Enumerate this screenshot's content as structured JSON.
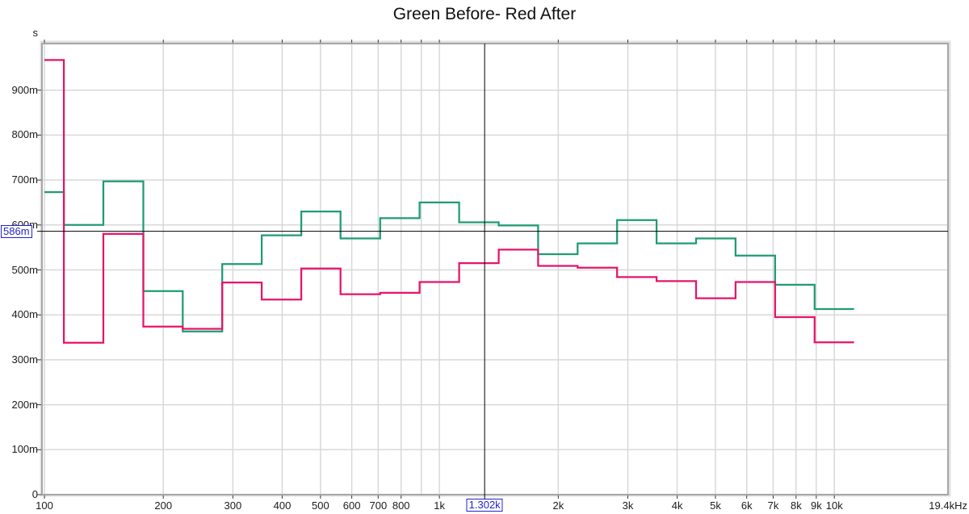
{
  "chart_data": {
    "type": "line",
    "subtype": "step-third-octave-bands",
    "title": "Green Before- Red After",
    "y_unit": "s",
    "x_axis": {
      "scale": "log",
      "min_hz": 100,
      "max_hz": 19400,
      "tick_labels": [
        {
          "f": 100,
          "label": "100"
        },
        {
          "f": 200,
          "label": "200"
        },
        {
          "f": 300,
          "label": "300"
        },
        {
          "f": 400,
          "label": "400"
        },
        {
          "f": 500,
          "label": "500"
        },
        {
          "f": 600,
          "label": "600"
        },
        {
          "f": 700,
          "label": "700"
        },
        {
          "f": 800,
          "label": "800"
        },
        {
          "f": 1000,
          "label": "1k"
        },
        {
          "f": 2000,
          "label": "2k"
        },
        {
          "f": 3000,
          "label": "3k"
        },
        {
          "f": 4000,
          "label": "4k"
        },
        {
          "f": 5000,
          "label": "5k"
        },
        {
          "f": 6000,
          "label": "6k"
        },
        {
          "f": 7000,
          "label": "7k"
        },
        {
          "f": 8000,
          "label": "8k"
        },
        {
          "f": 9000,
          "label": "9k"
        },
        {
          "f": 10000,
          "label": "10k"
        },
        {
          "f": 19400,
          "label": "19.4kHz"
        }
      ],
      "gridline_freqs": [
        100,
        200,
        300,
        400,
        500,
        600,
        700,
        800,
        900,
        1000,
        2000,
        3000,
        4000,
        5000,
        6000,
        7000,
        8000,
        9000,
        10000
      ]
    },
    "y_axis": {
      "min": 0,
      "max": 1000,
      "tick_labels": [
        {
          "v": 900,
          "label": "900m"
        },
        {
          "v": 800,
          "label": "800m"
        },
        {
          "v": 700,
          "label": "700m"
        },
        {
          "v": 600,
          "label": "600m"
        },
        {
          "v": 500,
          "label": "500m"
        },
        {
          "v": 400,
          "label": "400m"
        },
        {
          "v": 300,
          "label": "300m"
        },
        {
          "v": 200,
          "label": "200m"
        },
        {
          "v": 100,
          "label": "100m"
        },
        {
          "v": 0,
          "label": "0"
        }
      ],
      "gridline_values": [
        100,
        200,
        300,
        400,
        500,
        600,
        700,
        800,
        900
      ]
    },
    "band_edges_hz": [
      100,
      112,
      141,
      178,
      224,
      282,
      355,
      447,
      562,
      708,
      891,
      1122,
      1413,
      1778,
      2239,
      2818,
      3548,
      4467,
      5623,
      7079,
      8913,
      11220
    ],
    "band_centers_hz": [
      100,
      125,
      160,
      200,
      250,
      315,
      400,
      500,
      630,
      800,
      1000,
      1250,
      1600,
      2000,
      2500,
      3150,
      4000,
      5000,
      6300,
      8000,
      10000
    ],
    "series": [
      {
        "name": "Before",
        "color": "#1f9b74",
        "values_ms": [
          673,
          600,
          697,
          453,
          363,
          513,
          577,
          630,
          570,
          615,
          650,
          606,
          599,
          535,
          559,
          611,
          559,
          570,
          532,
          467,
          413
        ]
      },
      {
        "name": "After",
        "color": "#e5146c",
        "values_ms": [
          967,
          338,
          580,
          374,
          369,
          472,
          434,
          503,
          446,
          449,
          473,
          515,
          545,
          509,
          505,
          484,
          475,
          437,
          473,
          395,
          339
        ]
      }
    ],
    "cursor": {
      "x_hz": 1302,
      "x_label": "1.302k",
      "y_ms": 586,
      "y_label": "586m",
      "line_color": "#000000",
      "label_color": "#2323cd"
    },
    "colors": {
      "grid": "#d8d8d8",
      "border": "#a6a6a6",
      "tick": "#3a3a3a",
      "text": "#1b1b1b",
      "background": "#ffffff"
    }
  }
}
